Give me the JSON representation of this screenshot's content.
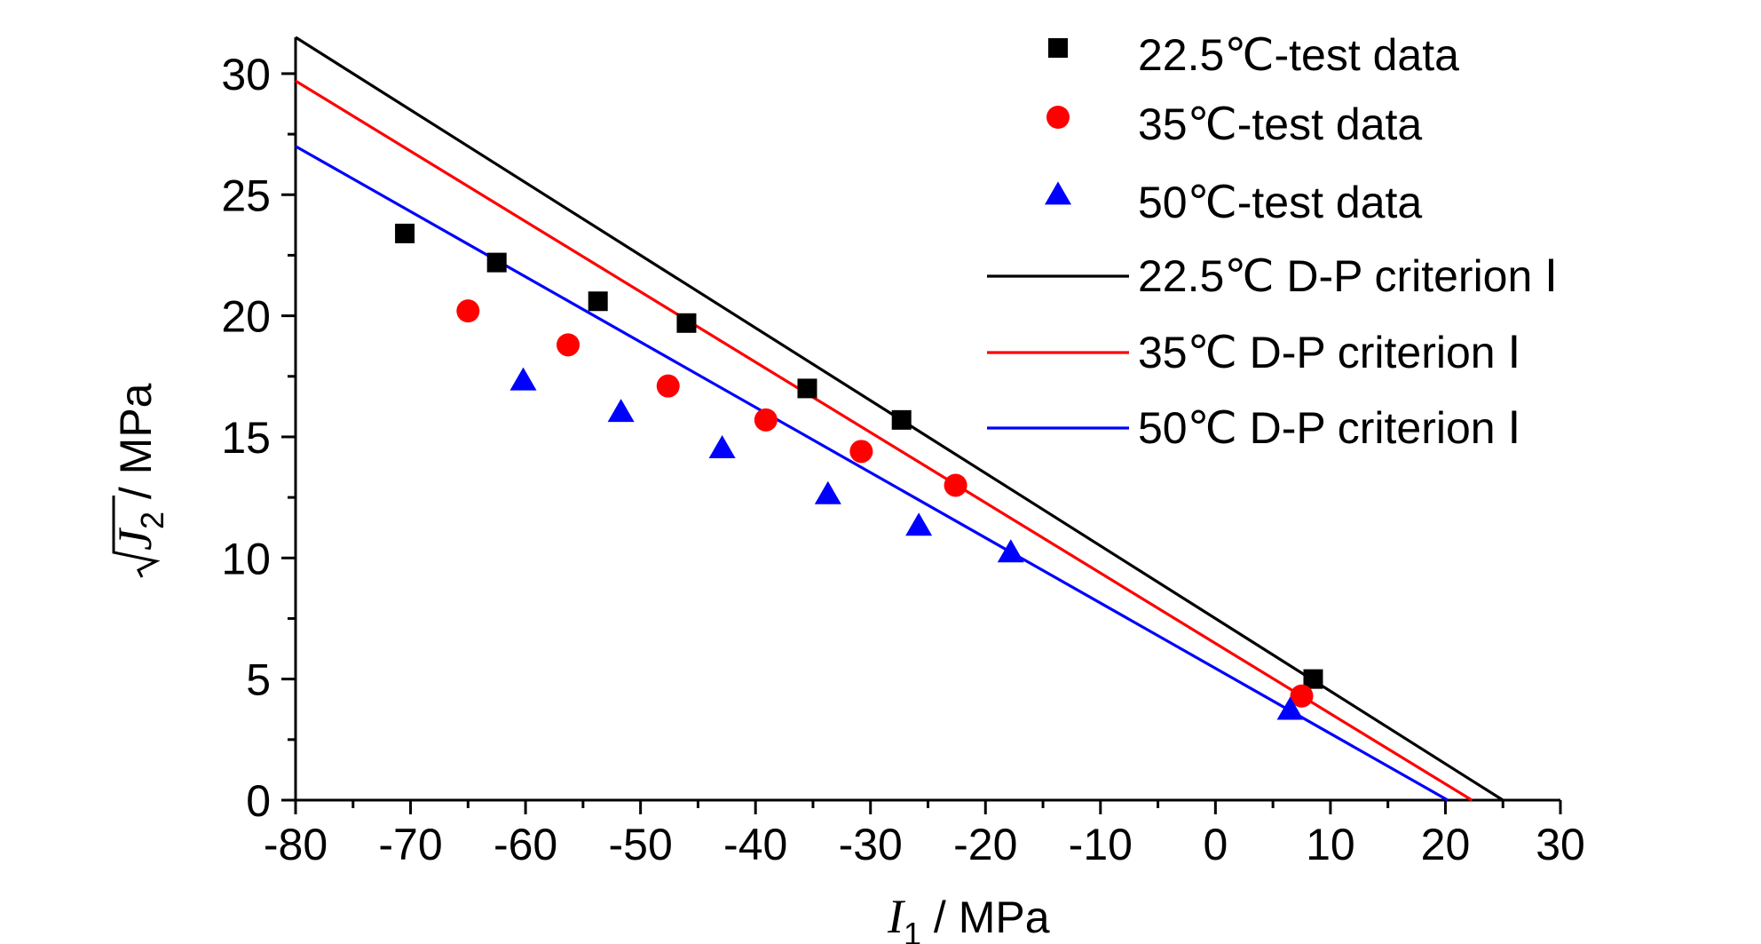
{
  "chart_data": {
    "type": "scatter",
    "title": "",
    "xlabel": "I1 / MPa",
    "ylabel": "√J2 / MPa",
    "xlabel_parts": {
      "symbol": "I",
      "sub": "1",
      "unit": " / MPa"
    },
    "ylabel_parts": {
      "symbol": "J",
      "sub": "2",
      "unit": " / MPa"
    },
    "xlim": [
      -80,
      30
    ],
    "ylim": [
      0,
      31.5
    ],
    "x_ticks": [
      -80,
      -70,
      -60,
      -50,
      -40,
      -30,
      -20,
      -10,
      0,
      10,
      20,
      30
    ],
    "y_ticks": [
      0,
      5,
      10,
      15,
      20,
      25,
      30
    ],
    "grid": false,
    "legend_position": "top-right",
    "series": [
      {
        "name": "22.5℃-test data",
        "kind": "scatter",
        "marker": "square",
        "color": "#000000",
        "points": [
          [
            -70.5,
            23.4
          ],
          [
            -62.5,
            22.2
          ],
          [
            -53.7,
            20.6
          ],
          [
            -46.0,
            19.7
          ],
          [
            -35.5,
            17.0
          ],
          [
            -27.3,
            15.7
          ],
          [
            8.5,
            5.0
          ]
        ]
      },
      {
        "name": "35℃-test data",
        "kind": "scatter",
        "marker": "circle",
        "color": "#ff0000",
        "points": [
          [
            -65.0,
            20.2
          ],
          [
            -56.3,
            18.8
          ],
          [
            -47.6,
            17.1
          ],
          [
            -39.1,
            15.7
          ],
          [
            -30.8,
            14.4
          ],
          [
            -22.6,
            13.0
          ],
          [
            7.5,
            4.3
          ]
        ]
      },
      {
        "name": "50℃-test data",
        "kind": "scatter",
        "marker": "triangle",
        "color": "#0000ff",
        "points": [
          [
            -60.2,
            17.3
          ],
          [
            -51.7,
            16.0
          ],
          [
            -42.9,
            14.5
          ],
          [
            -33.7,
            12.6
          ],
          [
            -25.8,
            11.3
          ],
          [
            -17.8,
            10.2
          ],
          [
            6.5,
            3.7
          ]
        ]
      },
      {
        "name": "22.5℃ D-P criterion Ⅰ",
        "kind": "line",
        "color": "#000000",
        "points": [
          [
            -80,
            31.5
          ],
          [
            25.0,
            0
          ]
        ]
      },
      {
        "name": "35℃ D-P criterion Ⅰ",
        "kind": "line",
        "color": "#ff0000",
        "points": [
          [
            -80,
            29.7
          ],
          [
            22.3,
            0
          ]
        ]
      },
      {
        "name": "50℃ D-P criterion Ⅰ",
        "kind": "line",
        "color": "#0000ff",
        "points": [
          [
            -80,
            27.0
          ],
          [
            20.2,
            0
          ]
        ]
      }
    ]
  }
}
